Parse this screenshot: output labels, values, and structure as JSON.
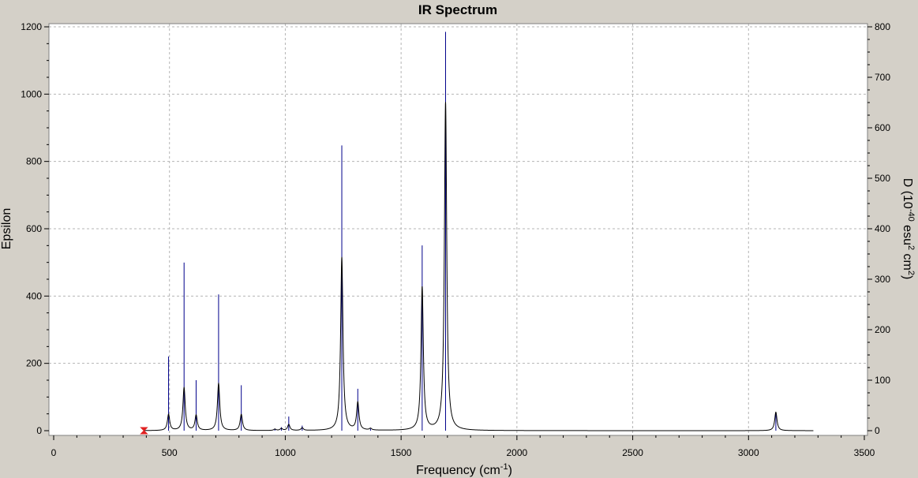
{
  "chart_data": {
    "type": "line",
    "title": "IR Spectrum",
    "xlabel": "Frequency (cm⁻¹)",
    "xlabel_parts": {
      "before": "Frequency (cm",
      "sup": "-1",
      "after": ")"
    },
    "ylabel": "Epsilon",
    "y2label": "D (10⁻⁴⁰ esu² cm²)",
    "y2label_parts": {
      "a": "D (10",
      "sup1": "-40",
      "b": " esu",
      "sup2": "2",
      "c": " cm",
      "sup3": "2",
      "d": ")"
    },
    "xlim": [
      0,
      3500
    ],
    "ylim": [
      0,
      1200
    ],
    "y2lim": [
      0,
      800
    ],
    "xticks": [
      "0",
      "500",
      "1000",
      "1500",
      "2000",
      "2500",
      "3000",
      "3500"
    ],
    "yticks": [
      "0",
      "200",
      "400",
      "600",
      "800",
      "1000",
      "1200"
    ],
    "y2ticks": [
      "0",
      "100",
      "200",
      "300",
      "400",
      "500",
      "600",
      "700",
      "800"
    ],
    "grid": true,
    "spectrum_range": [
      390,
      3280
    ],
    "colors": {
      "spectrum": "#000000",
      "sticks": "#00008b",
      "marker": "#e02020",
      "background": "#ffffff",
      "grid": "#b4b4b4",
      "frame": "#d4d0c8"
    },
    "peaks": [
      {
        "freq": 496,
        "epsilon": 48,
        "stick": 147
      },
      {
        "freq": 563,
        "epsilon": 127,
        "stick": 333
      },
      {
        "freq": 615,
        "epsilon": 45,
        "stick": 100
      },
      {
        "freq": 712,
        "epsilon": 140,
        "stick": 270
      },
      {
        "freq": 810,
        "epsilon": 48,
        "stick": 90
      },
      {
        "freq": 955,
        "epsilon": 4,
        "stick": 4
      },
      {
        "freq": 983,
        "epsilon": 6,
        "stick": 7
      },
      {
        "freq": 1015,
        "epsilon": 18,
        "stick": 28
      },
      {
        "freq": 1073,
        "epsilon": 8,
        "stick": 10
      },
      {
        "freq": 1244,
        "epsilon": 515,
        "stick": 565
      },
      {
        "freq": 1313,
        "epsilon": 82,
        "stick": 83
      },
      {
        "freq": 1368,
        "epsilon": 5,
        "stick": 4
      },
      {
        "freq": 1591,
        "epsilon": 425,
        "stick": 367
      },
      {
        "freq": 1692,
        "epsilon": 975,
        "stick": 790
      },
      {
        "freq": 3118,
        "epsilon": 55,
        "stick": 35
      }
    ]
  }
}
